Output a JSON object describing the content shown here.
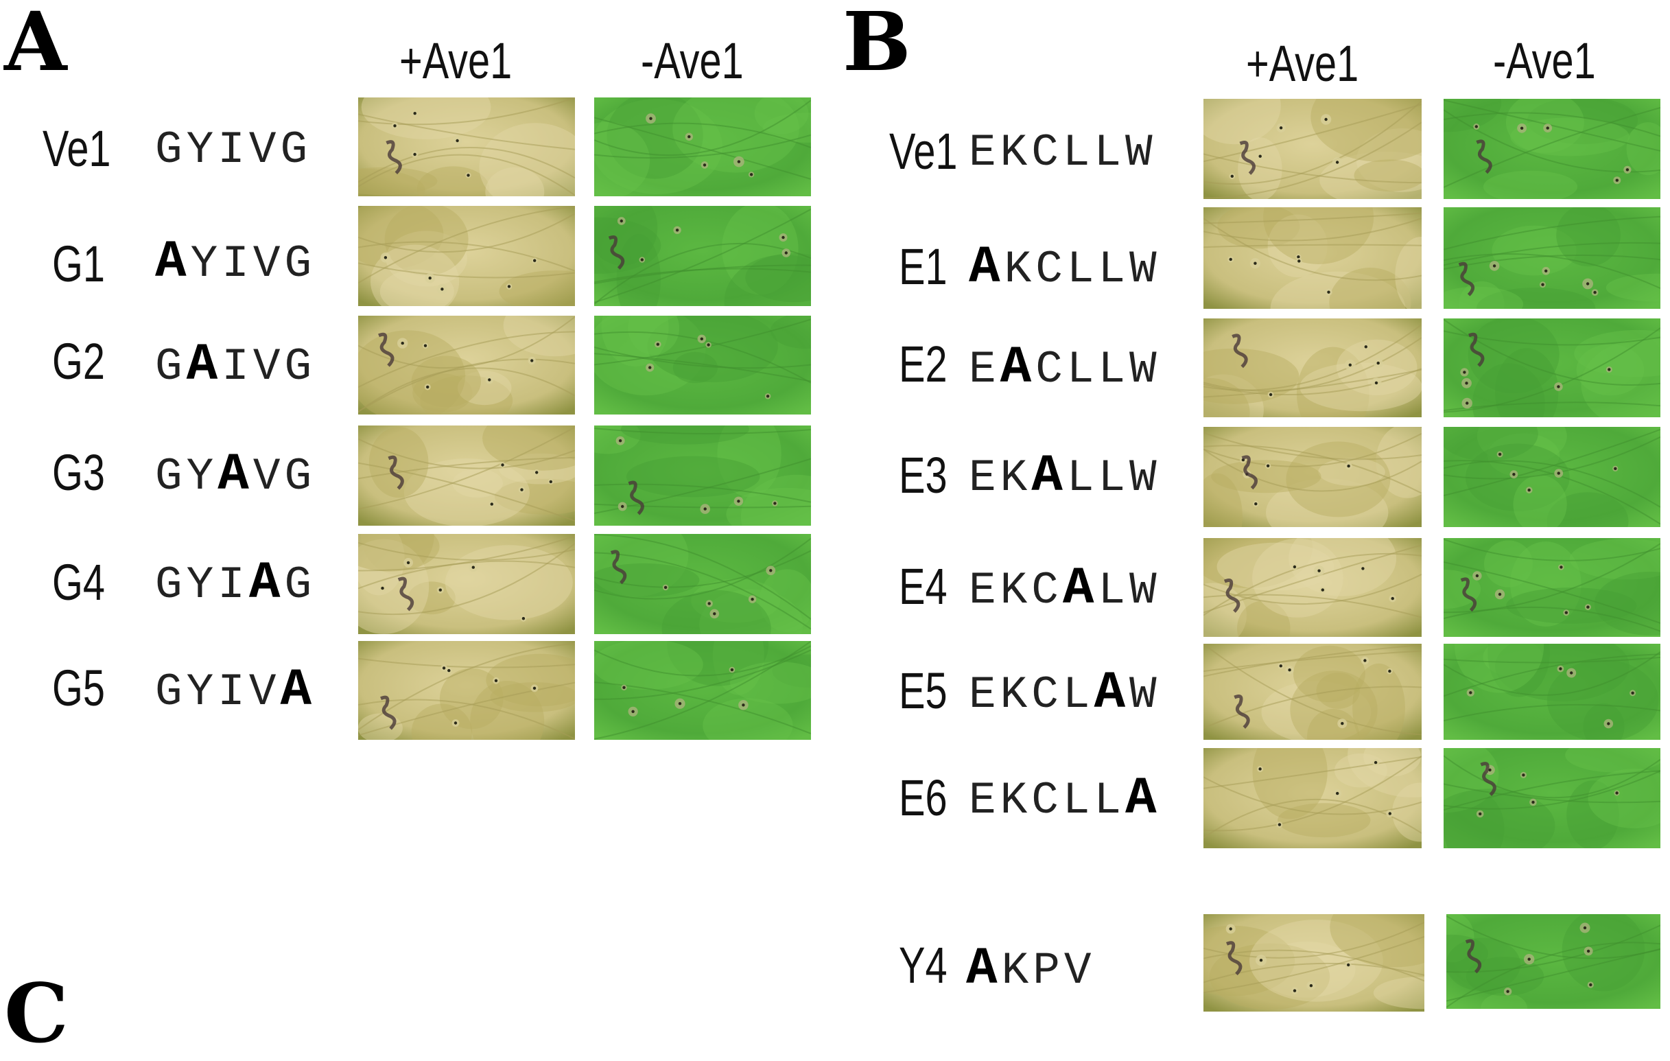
{
  "panels": [
    {
      "letter": "A",
      "col_headers": [
        "+Ave1",
        "-Ave1"
      ],
      "rows": [
        {
          "label": "Ve1",
          "residues": [
            "G",
            "Y",
            "I",
            "V",
            "G"
          ],
          "mutated_index": -1
        },
        {
          "label": "G1",
          "residues": [
            "A",
            "Y",
            "I",
            "V",
            "G"
          ],
          "mutated_index": 0
        },
        {
          "label": "G2",
          "residues": [
            "G",
            "A",
            "I",
            "V",
            "G"
          ],
          "mutated_index": 1
        },
        {
          "label": "G3",
          "residues": [
            "G",
            "Y",
            "A",
            "V",
            "G"
          ],
          "mutated_index": 2
        },
        {
          "label": "G4",
          "residues": [
            "G",
            "Y",
            "I",
            "A",
            "G"
          ],
          "mutated_index": 3
        },
        {
          "label": "G5",
          "residues": [
            "G",
            "Y",
            "I",
            "V",
            "A"
          ],
          "mutated_index": 4
        }
      ]
    },
    {
      "letter": "B",
      "col_headers": [
        "+Ave1",
        "-Ave1"
      ],
      "rows": [
        {
          "label": "Ve1",
          "residues": [
            "E",
            "K",
            "C",
            "L",
            "L",
            "W"
          ],
          "mutated_index": -1
        },
        {
          "label": "E1",
          "residues": [
            "A",
            "K",
            "C",
            "L",
            "L",
            "W"
          ],
          "mutated_index": 0
        },
        {
          "label": "E2",
          "residues": [
            "E",
            "A",
            "C",
            "L",
            "L",
            "W"
          ],
          "mutated_index": 1
        },
        {
          "label": "E3",
          "residues": [
            "E",
            "K",
            "A",
            "L",
            "L",
            "W"
          ],
          "mutated_index": 2
        },
        {
          "label": "E4",
          "residues": [
            "E",
            "K",
            "C",
            "A",
            "L",
            "W"
          ],
          "mutated_index": 3
        },
        {
          "label": "E5",
          "residues": [
            "E",
            "K",
            "C",
            "L",
            "A",
            "W"
          ],
          "mutated_index": 4
        },
        {
          "label": "E6",
          "residues": [
            "E",
            "K",
            "C",
            "L",
            "L",
            "A"
          ],
          "mutated_index": 5
        },
        {
          "label": "Y4",
          "residues": [
            "A",
            "K",
            "P",
            "V"
          ],
          "mutated_index": 0
        }
      ]
    },
    {
      "letter": "C"
    }
  ],
  "colors": {
    "chlorotic_leaf": "#c9bf7e",
    "chlorotic_leaf_dark": "#8f9343",
    "healthy_leaf": "#4faa3a",
    "healthy_leaf_light": "#62bd45"
  }
}
